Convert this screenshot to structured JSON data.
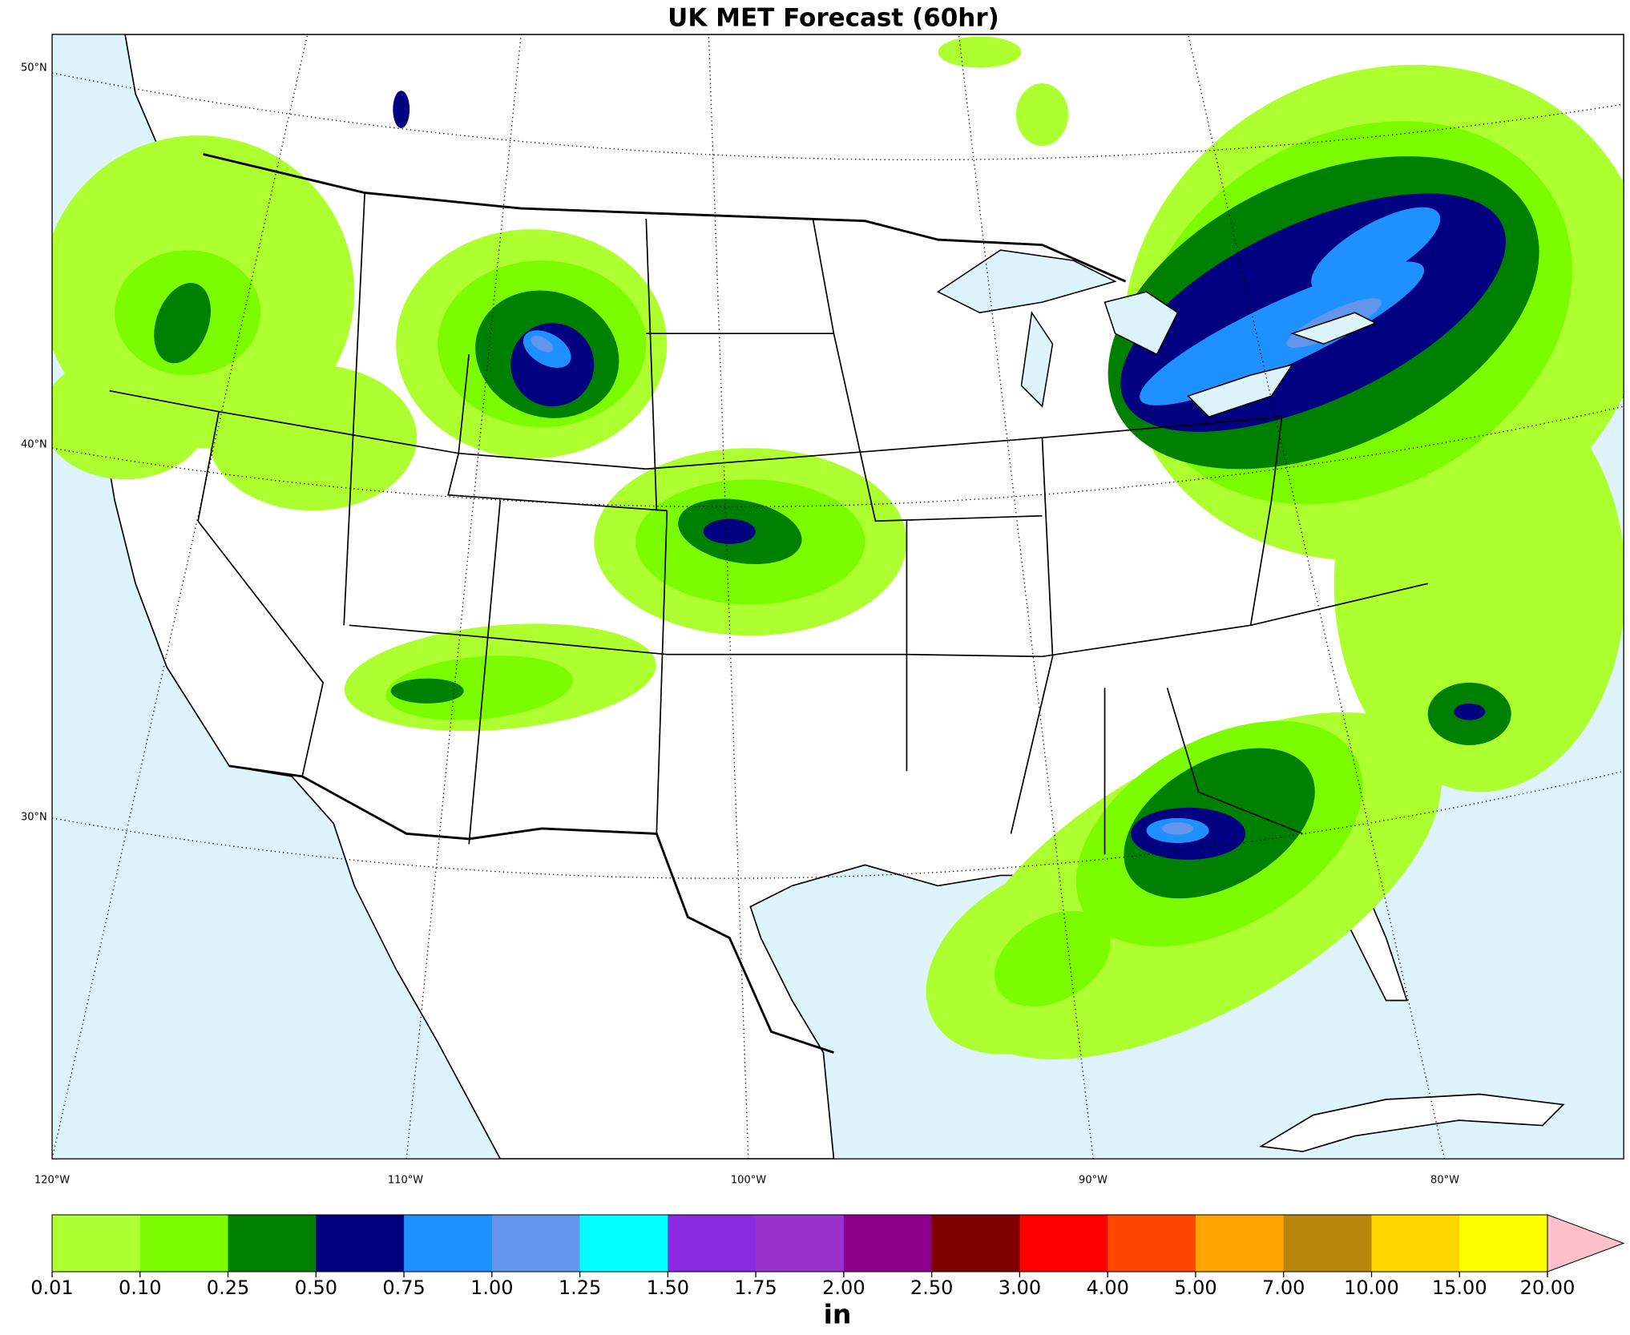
{
  "map": {
    "title": "UK MET Forecast (60hr)",
    "lat_labels": [
      "50°N",
      "40°N",
      "30°N"
    ],
    "lon_labels": [
      "120°W",
      "110°W",
      "100°W",
      "90°W",
      "80°W"
    ],
    "colorbar": {
      "ticks": [
        {
          "value": 0.01,
          "label": "0.01"
        },
        {
          "value": 0.1,
          "label": "0.10"
        },
        {
          "value": 0.25,
          "label": "0.25"
        },
        {
          "value": 0.5,
          "label": "0.50"
        },
        {
          "value": 0.75,
          "label": "0.75"
        },
        {
          "value": 1,
          "label": "1.00"
        },
        {
          "value": 1.25,
          "label": "1.25"
        },
        {
          "value": 1.5,
          "label": "1.50"
        },
        {
          "value": 1.75,
          "label": "1.75"
        },
        {
          "value": 2,
          "label": "2.00"
        },
        {
          "value": 2.5,
          "label": "2.50"
        },
        {
          "value": 3,
          "label": "3.00"
        },
        {
          "value": 4,
          "label": "4.00"
        },
        {
          "value": 5,
          "label": "5.00"
        },
        {
          "value": 7,
          "label": "7.00"
        },
        {
          "value": 10,
          "label": "10.00"
        },
        {
          "value": 15,
          "label": "15.00"
        },
        {
          "value": 20,
          "label": "20.00"
        }
      ],
      "colors": [
        "#adff2f",
        "#7cfc00",
        "#008000",
        "#000080",
        "#1e90ff",
        "#6495ed",
        "#00ffff",
        "#8a2be2",
        "#9932cc",
        "#8b008b",
        "#800000",
        "#ff0000",
        "#ff4500",
        "#ffa500",
        "#b8860b",
        "#ffd700",
        "#ffff00"
      ],
      "extend_color": "#ffc0cb",
      "unit": "in"
    }
  }
}
